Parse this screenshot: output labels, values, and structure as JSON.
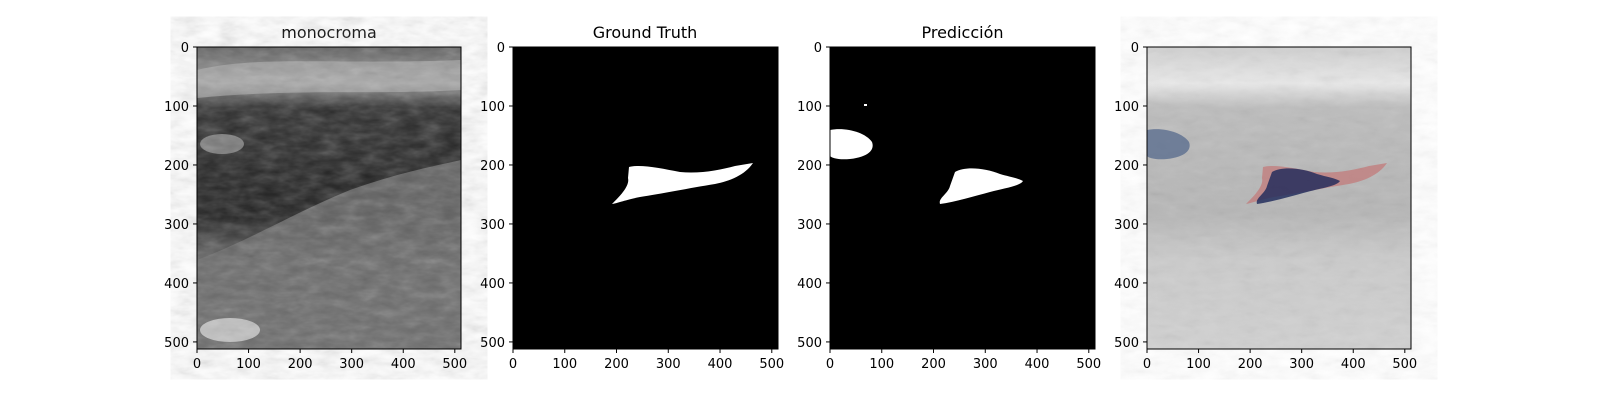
{
  "panels": [
    {
      "title": "monocroma",
      "image": "grayscale ultrasound"
    },
    {
      "title": "Ground Truth",
      "image": "binary mask"
    },
    {
      "title": "Predicción",
      "image": "binary mask"
    },
    {
      "title": "",
      "image": "overlay of mask and prediction on ultrasound"
    }
  ],
  "axis": {
    "x_ticks": [
      "0",
      "100",
      "200",
      "300",
      "400",
      "500"
    ],
    "y_ticks": [
      "0",
      "100",
      "200",
      "300",
      "400",
      "500"
    ],
    "x_range": [
      0,
      512
    ],
    "y_range": [
      0,
      512
    ]
  },
  "colors": {
    "ground_truth_overlay": "#c46b6b",
    "prediction_overlay": "#2b3a6e"
  }
}
